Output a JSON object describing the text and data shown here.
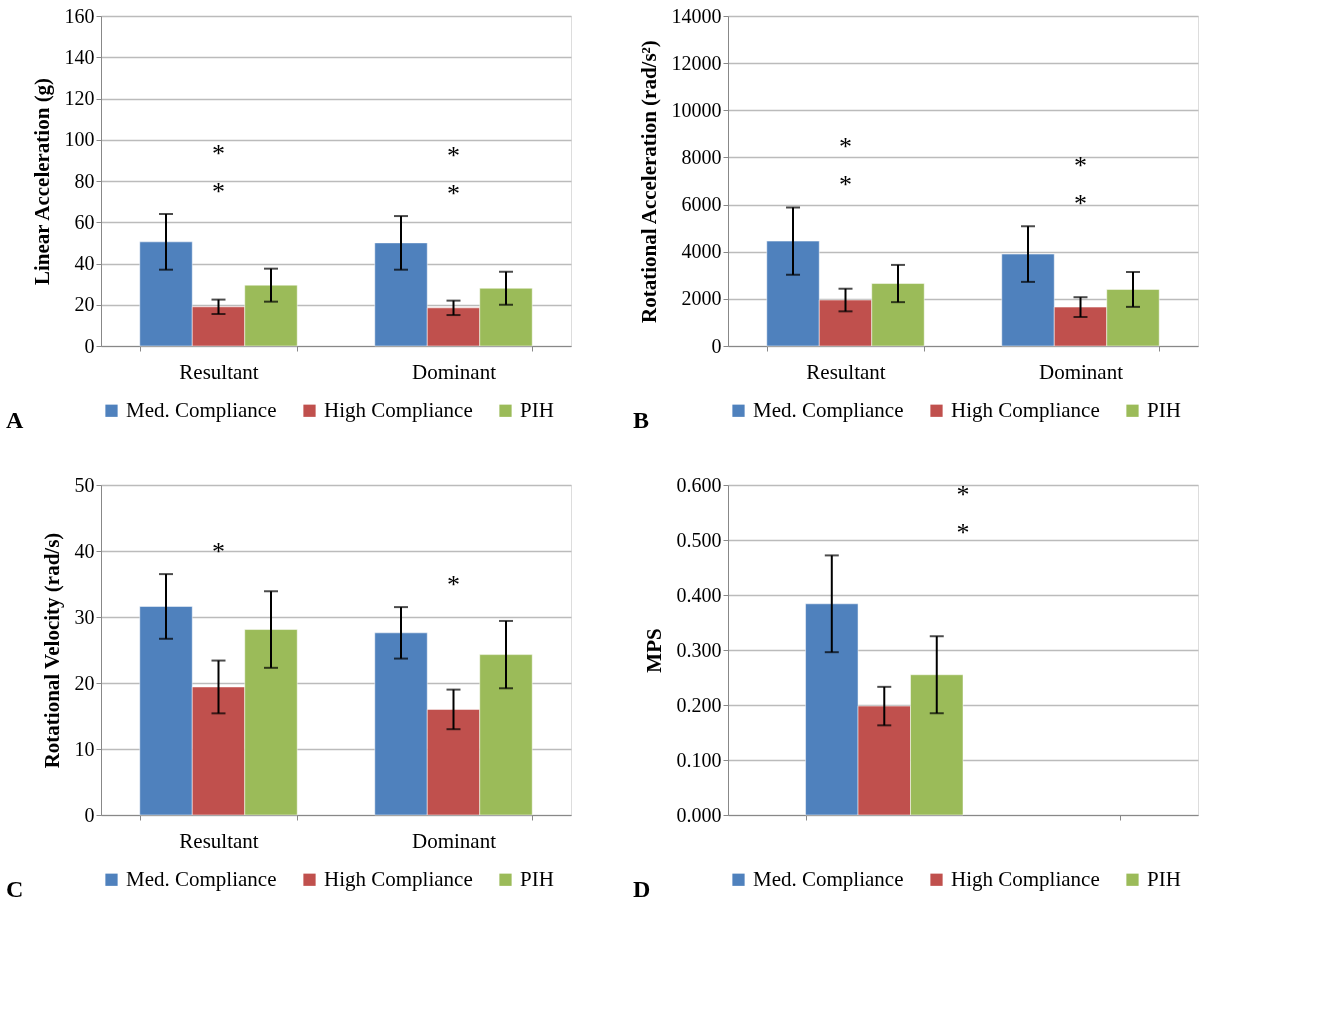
{
  "chart_data": [
    {
      "type": "bar",
      "ylabel": "Linear Acceleration (g)",
      "categories": [
        "Resultant",
        "Dominant"
      ],
      "ylim": [
        0,
        160
      ],
      "yticks": [
        0,
        20,
        40,
        60,
        80,
        100,
        120,
        140,
        160
      ],
      "grid": "y",
      "legend": "bottom",
      "series": [
        {
          "name": "Med. Compliance",
          "color": "#4f81bd",
          "values": [
            50.5,
            50
          ],
          "errors": [
            13.5,
            13
          ]
        },
        {
          "name": "High Compliance",
          "color": "#c0504d",
          "values": [
            19,
            18.5
          ],
          "errors": [
            3.5,
            3.5
          ]
        },
        {
          "name": "PIH",
          "color": "#9bbb59",
          "values": [
            29.5,
            28
          ],
          "errors": [
            8,
            8
          ]
        }
      ],
      "annotations": [
        "*",
        "*",
        "*",
        "*",
        "A"
      ]
    },
    {
      "type": "bar",
      "ylabel": "Rotational Acceleration (rad/s²)",
      "categories": [
        "Resultant",
        "Dominant"
      ],
      "ylim": [
        0,
        14000
      ],
      "yticks": [
        0,
        2000,
        4000,
        6000,
        8000,
        {
          "value": 10000,
          "label": "10000"
        },
        {
          "value": 12000,
          "label": "12000"
        },
        {
          "value": 14000,
          "label": "14000"
        }
      ],
      "grid": "y",
      "legend": "bottom",
      "series": [
        {
          "name": "Med. Compliance",
          "color": "#4f81bd",
          "values": [
            4450,
            3900
          ],
          "errors": [
            1430,
            1180
          ]
        },
        {
          "name": "High Compliance",
          "color": "#c0504d",
          "values": [
            1950,
            1650
          ],
          "errors": [
            480,
            420
          ]
        },
        {
          "name": "PIH",
          "color": "#9bbb59",
          "values": [
            2650,
            2400
          ],
          "errors": [
            790,
            740
          ]
        }
      ],
      "annotations": [
        "*",
        "*",
        "*",
        "*",
        "B"
      ]
    },
    {
      "type": "bar",
      "ylabel": "Rotational Velocity (rad/s)",
      "categories": [
        "Resultant",
        "Dominant"
      ],
      "ylim": [
        0,
        50
      ],
      "yticks": [
        0,
        10,
        20,
        30,
        40,
        50
      ],
      "grid": "y",
      "legend": "bottom",
      "series": [
        {
          "name": "Med. Compliance",
          "color": "#4f81bd",
          "values": [
            31.6,
            27.6
          ],
          "errors": [
            4.9,
            3.9
          ]
        },
        {
          "name": "High Compliance",
          "color": "#c0504d",
          "values": [
            19.4,
            16
          ],
          "errors": [
            4,
            3
          ]
        },
        {
          "name": "PIH",
          "color": "#9bbb59",
          "values": [
            28.1,
            24.3
          ],
          "errors": [
            5.8,
            5.1
          ]
        }
      ],
      "annotations": [
        "*",
        "*",
        "C"
      ]
    },
    {
      "type": "bar",
      "ylabel": "MPS",
      "categories": [
        null
      ],
      "ylim": [
        0,
        0.6
      ],
      "yticks": [
        {
          "value": 0,
          "label": "0.000"
        },
        {
          "value": 0.1,
          "label": "0.100"
        },
        {
          "value": 0.2,
          "label": "0.200"
        },
        {
          "value": 0.3,
          "label": "0.300"
        },
        {
          "value": 0.4,
          "label": "0.400"
        },
        {
          "value": 0.5,
          "label": "0.500"
        },
        {
          "value": 0.6,
          "label": "0.600"
        }
      ],
      "grid": "y",
      "legend": "bottom",
      "series": [
        {
          "name": "Med. Compliance",
          "color": "#4f81bd",
          "values": [
            0.384
          ],
          "errors": [
            0.088
          ]
        },
        {
          "name": "High Compliance",
          "color": "#c0504d",
          "values": [
            0.198
          ],
          "errors": [
            0.035
          ]
        },
        {
          "name": "PIH",
          "color": "#9bbb59",
          "values": [
            0.255
          ],
          "errors": [
            0.07
          ]
        }
      ],
      "annotations": [
        "*",
        "*",
        "D"
      ]
    }
  ]
}
